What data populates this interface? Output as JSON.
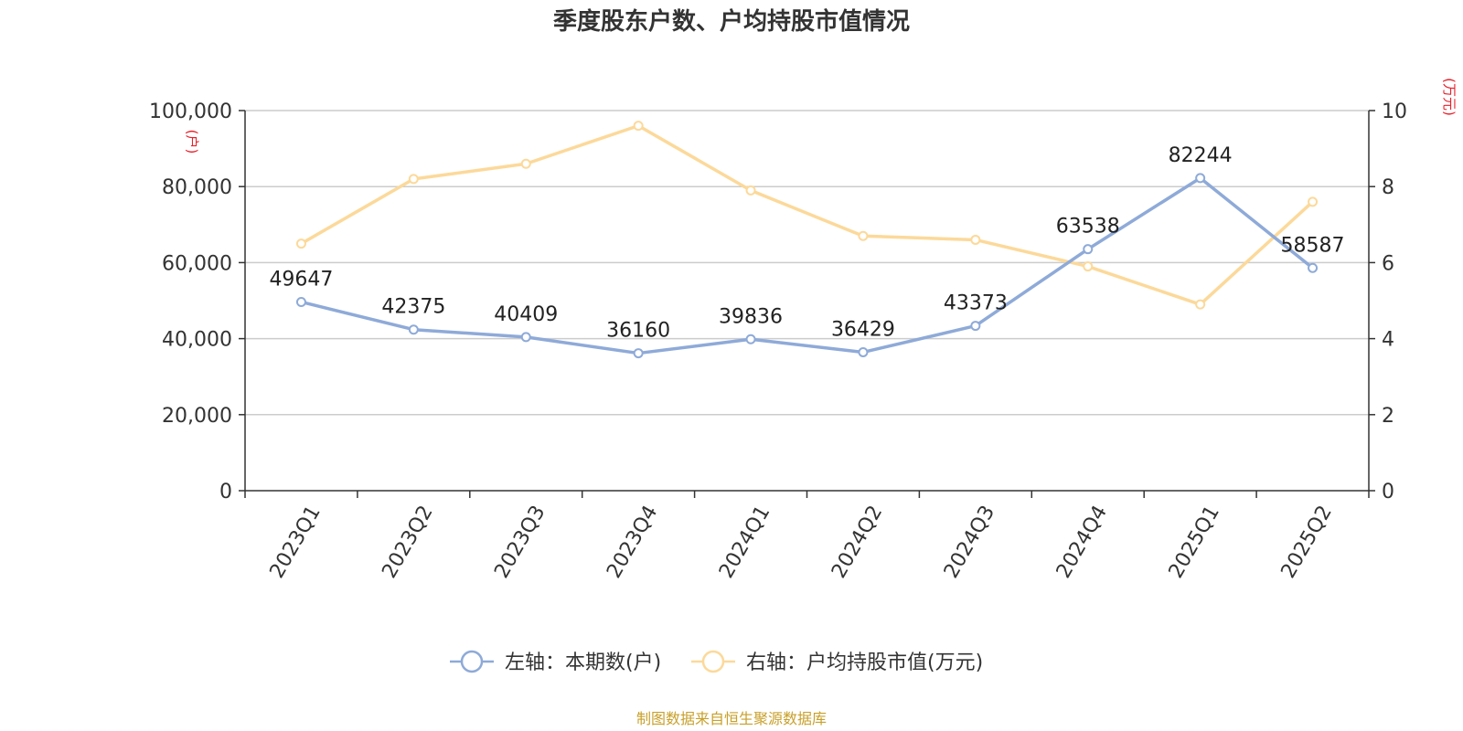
{
  "chart_data": {
    "type": "line",
    "title": "季度股东户数、户均持股市值情况",
    "categories": [
      "2023Q1",
      "2023Q2",
      "2023Q3",
      "2023Q4",
      "2024Q1",
      "2024Q2",
      "2024Q3",
      "2024Q4",
      "2025Q1",
      "2025Q2"
    ],
    "y_left": {
      "unit": "(户)",
      "ylim": [
        0,
        100000
      ],
      "ticks": [
        "0",
        "20,000",
        "40,000",
        "60,000",
        "80,000",
        "100,000"
      ],
      "tick_values": [
        0,
        20000,
        40000,
        60000,
        80000,
        100000
      ]
    },
    "y_right": {
      "unit": "(万元)",
      "ylim": [
        0,
        10
      ],
      "ticks": [
        "0",
        "2",
        "4",
        "6",
        "8",
        "10"
      ],
      "tick_values": [
        0,
        2,
        4,
        6,
        8,
        10
      ]
    },
    "series": [
      {
        "name": "左轴：本期数(户)",
        "axis": "left",
        "color": "#8eaad8",
        "values": [
          49647,
          42375,
          40409,
          36160,
          39836,
          36429,
          43373,
          63538,
          82244,
          58587
        ],
        "data_labels": [
          "49647",
          "42375",
          "40409",
          "36160",
          "39836",
          "36429",
          "43373",
          "63538",
          "82244",
          "58587"
        ]
      },
      {
        "name": "右轴：户均持股市值(万元)",
        "axis": "right",
        "color": "#fcd99a",
        "values": [
          6.5,
          8.2,
          8.6,
          9.6,
          7.9,
          6.7,
          6.6,
          5.9,
          4.9,
          7.6
        ]
      }
    ],
    "grid": true,
    "legend": "bottom-center"
  },
  "source": "制图数据来自恒生聚源数据库",
  "colors": {
    "unit_label": "#e8202a",
    "source": "#c8a02a",
    "grid": "#cccccc",
    "axis": "#333333"
  }
}
